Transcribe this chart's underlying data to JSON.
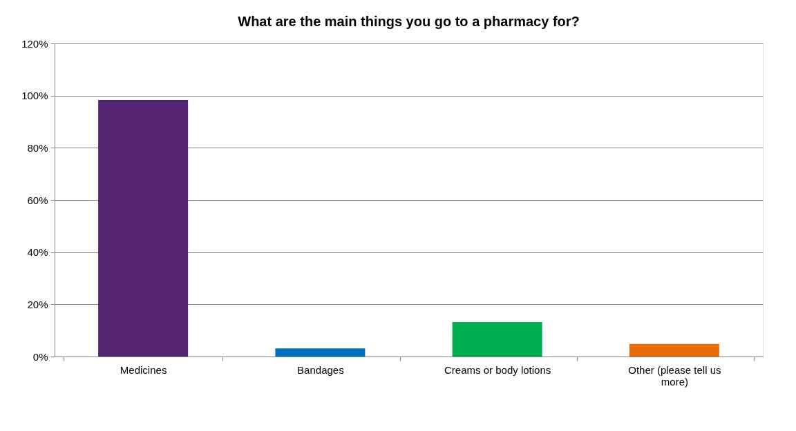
{
  "chart_data": {
    "type": "bar",
    "title": "What are the main things you go to a pharmacy for?",
    "categories": [
      "Medicines",
      "Bandages",
      "Creams or body lotions",
      "Other (please tell us more)"
    ],
    "values": [
      98.3,
      3.1,
      13.2,
      4.8
    ],
    "colors": [
      "#532471",
      "#0070c0",
      "#00b050",
      "#e46c0a"
    ],
    "ylim": [
      0,
      120
    ],
    "yticks": [
      {
        "value": 0,
        "label": "0%"
      },
      {
        "value": 20,
        "label": "20%"
      },
      {
        "value": 40,
        "label": "40%"
      },
      {
        "value": 60,
        "label": "60%"
      },
      {
        "value": 80,
        "label": "80%"
      },
      {
        "value": 100,
        "label": "100%"
      },
      {
        "value": 120,
        "label": "120%"
      }
    ],
    "grid": "y",
    "legend": false
  }
}
